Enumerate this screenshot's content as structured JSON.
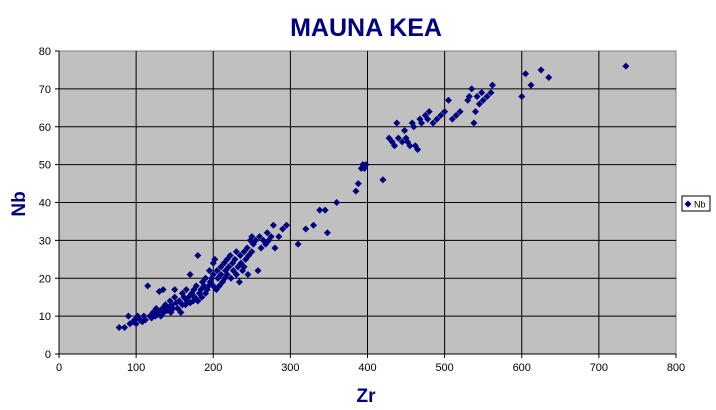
{
  "chart_data": {
    "type": "scatter",
    "title": "MAUNA KEA",
    "xlabel": "Zr",
    "ylabel": "Nb",
    "xlim": [
      0,
      800
    ],
    "ylim": [
      0,
      80
    ],
    "xticks": [
      0,
      100,
      200,
      300,
      400,
      500,
      600,
      700,
      800
    ],
    "yticks": [
      0,
      10,
      20,
      30,
      40,
      50,
      60,
      70,
      80
    ],
    "grid": true,
    "legend": "right",
    "plot_background": "#c0c0c0",
    "marker_color": "#000080",
    "series": [
      {
        "name": "Nb",
        "marker": "diamond",
        "points": [
          [
            78,
            7
          ],
          [
            85,
            7
          ],
          [
            90,
            10
          ],
          [
            92,
            8
          ],
          [
            96,
            8.5
          ],
          [
            98,
            9
          ],
          [
            100,
            8
          ],
          [
            102,
            10
          ],
          [
            105,
            9
          ],
          [
            108,
            8.5
          ],
          [
            110,
            10
          ],
          [
            112,
            9
          ],
          [
            115,
            18
          ],
          [
            118,
            10
          ],
          [
            120,
            9.5
          ],
          [
            122,
            11
          ],
          [
            125,
            10
          ],
          [
            126,
            12
          ],
          [
            128,
            10.5
          ],
          [
            130,
            11
          ],
          [
            130,
            16.5
          ],
          [
            132,
            10
          ],
          [
            134,
            12
          ],
          [
            135,
            17
          ],
          [
            136,
            11
          ],
          [
            138,
            13
          ],
          [
            140,
            11.5
          ],
          [
            142,
            12
          ],
          [
            144,
            14
          ],
          [
            145,
            11
          ],
          [
            146,
            13
          ],
          [
            148,
            12
          ],
          [
            150,
            15
          ],
          [
            150,
            17
          ],
          [
            152,
            13.5
          ],
          [
            154,
            12
          ],
          [
            156,
            14
          ],
          [
            158,
            11
          ],
          [
            160,
            13
          ],
          [
            160,
            16
          ],
          [
            162,
            15
          ],
          [
            164,
            13
          ],
          [
            165,
            17
          ],
          [
            166,
            14
          ],
          [
            168,
            15
          ],
          [
            170,
            21
          ],
          [
            170,
            13.5
          ],
          [
            172,
            16
          ],
          [
            174,
            14
          ],
          [
            175,
            17
          ],
          [
            176,
            15
          ],
          [
            178,
            18
          ],
          [
            180,
            14
          ],
          [
            180,
            26
          ],
          [
            182,
            16
          ],
          [
            184,
            17
          ],
          [
            185,
            15
          ],
          [
            186,
            19
          ],
          [
            188,
            18
          ],
          [
            190,
            16
          ],
          [
            190,
            20
          ],
          [
            192,
            17
          ],
          [
            194,
            18
          ],
          [
            195,
            22
          ],
          [
            196,
            19
          ],
          [
            198,
            20
          ],
          [
            200,
            18
          ],
          [
            200,
            21
          ],
          [
            200,
            24
          ],
          [
            202,
            25
          ],
          [
            204,
            17
          ],
          [
            205,
            22
          ],
          [
            206,
            20
          ],
          [
            208,
            18
          ],
          [
            210,
            21
          ],
          [
            210,
            23
          ],
          [
            212,
            19
          ],
          [
            214,
            24
          ],
          [
            215,
            20
          ],
          [
            216,
            22
          ],
          [
            218,
            21
          ],
          [
            218,
            25
          ],
          [
            220,
            23
          ],
          [
            222,
            26
          ],
          [
            223,
            20
          ],
          [
            225,
            24
          ],
          [
            226,
            22
          ],
          [
            228,
            25
          ],
          [
            230,
            21
          ],
          [
            230,
            27
          ],
          [
            232,
            23
          ],
          [
            234,
            19
          ],
          [
            235,
            26
          ],
          [
            236,
            24
          ],
          [
            238,
            22
          ],
          [
            240,
            27
          ],
          [
            240,
            23
          ],
          [
            242,
            25
          ],
          [
            244,
            28
          ],
          [
            245,
            21
          ],
          [
            246,
            26
          ],
          [
            248,
            30
          ],
          [
            250,
            27
          ],
          [
            250,
            31
          ],
          [
            252,
            29
          ],
          [
            255,
            30
          ],
          [
            258,
            22
          ],
          [
            260,
            31
          ],
          [
            262,
            28
          ],
          [
            265,
            30
          ],
          [
            268,
            29
          ],
          [
            270,
            32
          ],
          [
            272,
            30
          ],
          [
            275,
            31
          ],
          [
            278,
            34
          ],
          [
            280,
            28
          ],
          [
            285,
            31
          ],
          [
            290,
            33
          ],
          [
            295,
            34
          ],
          [
            310,
            29
          ],
          [
            320,
            33
          ],
          [
            330,
            34
          ],
          [
            338,
            38
          ],
          [
            345,
            38
          ],
          [
            348,
            32
          ],
          [
            360,
            40
          ],
          [
            385,
            43
          ],
          [
            388,
            45
          ],
          [
            392,
            49
          ],
          [
            394,
            50
          ],
          [
            396,
            49
          ],
          [
            398,
            50
          ],
          [
            420,
            46
          ],
          [
            428,
            57
          ],
          [
            432,
            56
          ],
          [
            435,
            55
          ],
          [
            438,
            61
          ],
          [
            440,
            57
          ],
          [
            445,
            56
          ],
          [
            448,
            59
          ],
          [
            450,
            57
          ],
          [
            452,
            56
          ],
          [
            455,
            55
          ],
          [
            458,
            61
          ],
          [
            460,
            60
          ],
          [
            462,
            55
          ],
          [
            465,
            54
          ],
          [
            468,
            62
          ],
          [
            470,
            61
          ],
          [
            475,
            63
          ],
          [
            478,
            62
          ],
          [
            480,
            64
          ],
          [
            485,
            61
          ],
          [
            490,
            62
          ],
          [
            495,
            63
          ],
          [
            500,
            64
          ],
          [
            505,
            67
          ],
          [
            510,
            62
          ],
          [
            515,
            63
          ],
          [
            520,
            64
          ],
          [
            530,
            67
          ],
          [
            532,
            68
          ],
          [
            535,
            70
          ],
          [
            538,
            61
          ],
          [
            540,
            64
          ],
          [
            542,
            68
          ],
          [
            545,
            66
          ],
          [
            548,
            69
          ],
          [
            550,
            67
          ],
          [
            555,
            68
          ],
          [
            560,
            69
          ],
          [
            562,
            71
          ],
          [
            600,
            68
          ],
          [
            605,
            74
          ],
          [
            612,
            71
          ],
          [
            625,
            75
          ],
          [
            635,
            73
          ],
          [
            735,
            76
          ]
        ]
      }
    ]
  }
}
